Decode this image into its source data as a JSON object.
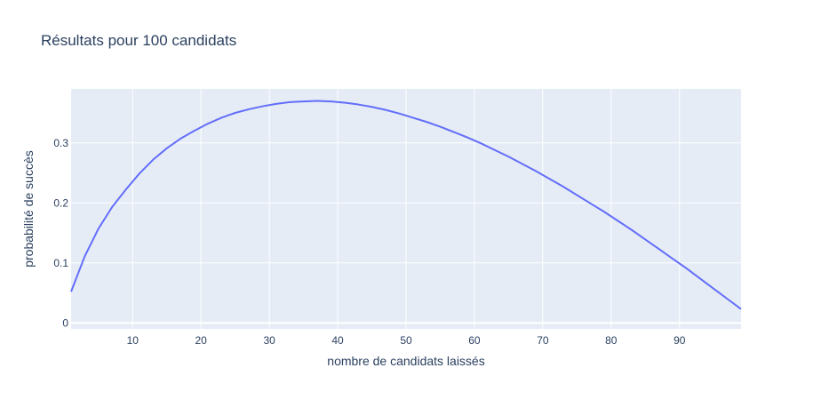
{
  "chart_data": {
    "type": "line",
    "title": "Résultats pour 100 candidats",
    "xlabel": "nombre de candidats laissés",
    "ylabel": "probabilité de succès",
    "xlim": [
      1,
      99
    ],
    "ylim": [
      -0.01,
      0.39
    ],
    "xticks": [
      10,
      20,
      30,
      40,
      50,
      60,
      70,
      80,
      90
    ],
    "yticks": [
      0,
      0.1,
      0.2,
      0.3
    ],
    "ytick_labels": [
      "0",
      "0.1",
      "0.2",
      "0.3"
    ],
    "grid": true,
    "series": [
      {
        "color": "#636efa",
        "x": [
          1,
          3,
          5,
          7,
          9,
          11,
          13,
          15,
          17,
          19,
          21,
          23,
          25,
          27,
          29,
          31,
          33,
          35,
          37,
          39,
          41,
          43,
          45,
          47,
          49,
          51,
          53,
          55,
          57,
          59,
          61,
          63,
          65,
          67,
          69,
          71,
          73,
          75,
          77,
          79,
          81,
          83,
          85,
          87,
          89,
          91,
          93,
          95,
          97,
          99
        ],
        "y": [
          0.052,
          0.111,
          0.157,
          0.193,
          0.222,
          0.249,
          0.272,
          0.291,
          0.307,
          0.32,
          0.332,
          0.342,
          0.35,
          0.356,
          0.361,
          0.365,
          0.368,
          0.369,
          0.37,
          0.369,
          0.367,
          0.364,
          0.36,
          0.355,
          0.349,
          0.342,
          0.335,
          0.327,
          0.318,
          0.309,
          0.299,
          0.288,
          0.277,
          0.265,
          0.253,
          0.24,
          0.227,
          0.213,
          0.199,
          0.185,
          0.17,
          0.155,
          0.139,
          0.123,
          0.107,
          0.091,
          0.074,
          0.057,
          0.04,
          0.023
        ]
      }
    ]
  }
}
